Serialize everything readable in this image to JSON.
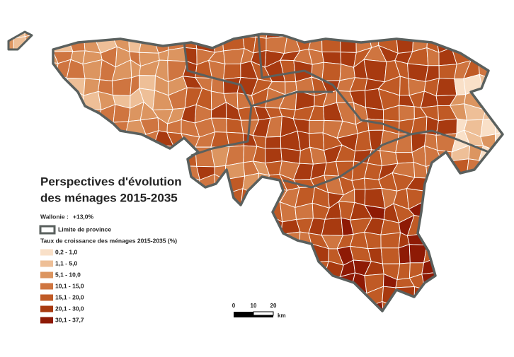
{
  "title": [
    "Perspectives d'évolution",
    "des ménages 2015-2035"
  ],
  "summary": {
    "label": "Wallonie :",
    "value": "+13,0%"
  },
  "province_limit_label": "Limite de province",
  "legend": {
    "title": "Taux de croissance des ménages 2015-2035 (%)",
    "classes": [
      {
        "label": "0,2 - 1,0",
        "color": "#f9e0c8"
      },
      {
        "label": "1,1 - 5,0",
        "color": "#eebf97"
      },
      {
        "label": "5,1 - 10,0",
        "color": "#dc9560"
      },
      {
        "label": "10,1 - 15,0",
        "color": "#cf7540"
      },
      {
        "label": "15,1 - 20,0",
        "color": "#c05a25"
      },
      {
        "label": "20,1 - 30,0",
        "color": "#a83a10"
      },
      {
        "label": "30,1 - 37,7",
        "color": "#8e1a05"
      }
    ]
  },
  "scale_bar": {
    "ticks": [
      0,
      10,
      20
    ],
    "unit": "km"
  }
}
